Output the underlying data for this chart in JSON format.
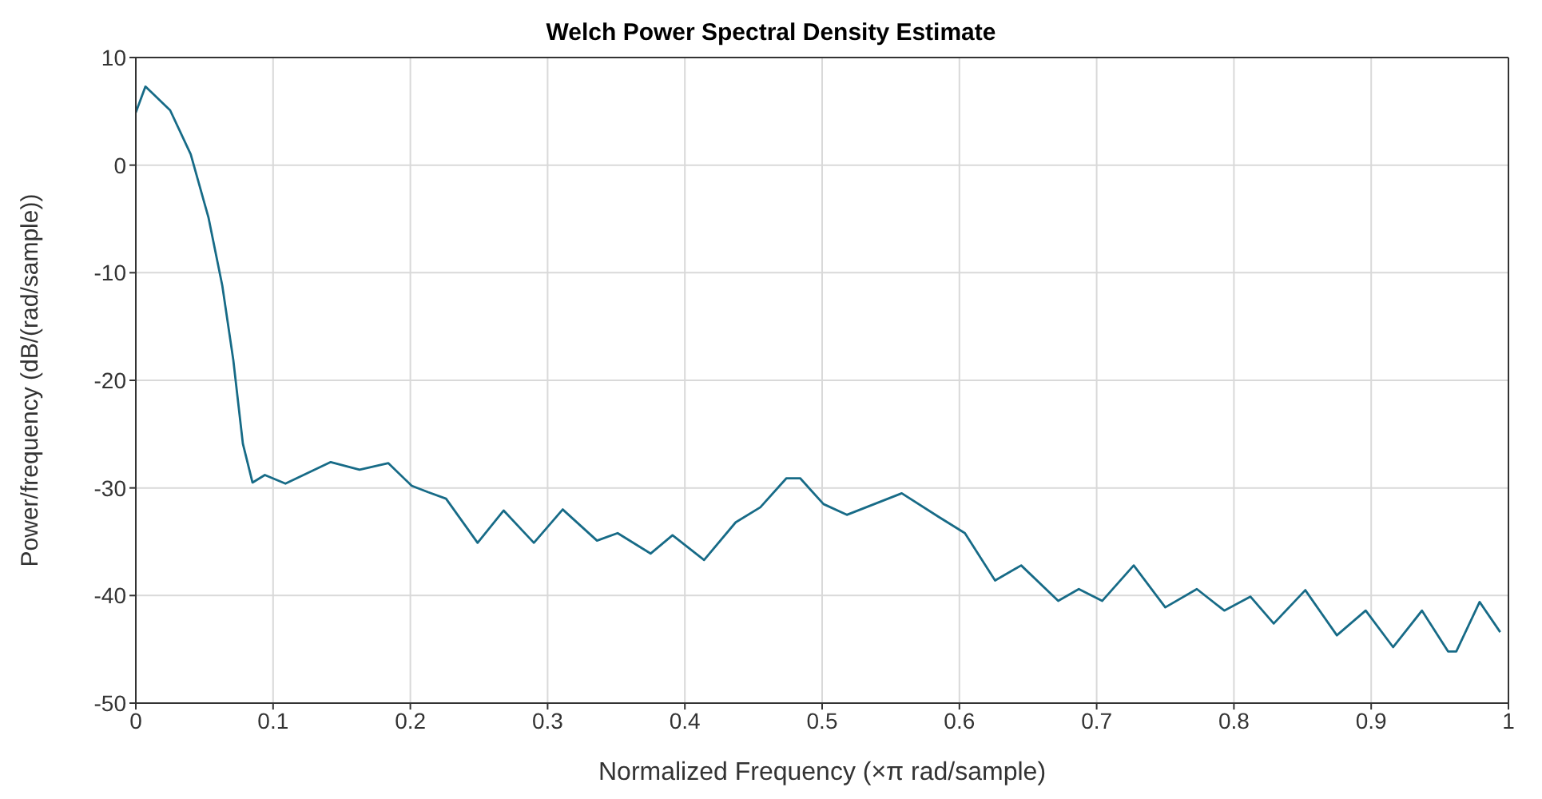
{
  "chart_data": {
    "type": "line",
    "title": "Welch Power Spectral Density Estimate",
    "xlabel": "Normalized Frequency  (×π rad/sample)",
    "ylabel": "Power/frequency (dB/(rad/sample))",
    "xlim": [
      0,
      1
    ],
    "xticks": [
      0,
      0.1,
      0.2,
      0.3,
      0.4,
      0.5,
      0.6,
      0.7,
      0.8,
      0.9,
      1
    ],
    "ylim": [
      -50,
      10
    ],
    "yticks": [
      -50,
      -40,
      -30,
      -20,
      -10,
      0,
      10
    ],
    "grid": true,
    "marker": "none",
    "line_style": "solid",
    "series": [
      {
        "color": "#176b87",
        "x": [
          0,
          0.007,
          0.025,
          0.04,
          0.053,
          0.063,
          0.071,
          0.078,
          0.085,
          0.094,
          0.109,
          0.142,
          0.163,
          0.184,
          0.201,
          0.213,
          0.226,
          0.249,
          0.268,
          0.29,
          0.311,
          0.336,
          0.351,
          0.375,
          0.391,
          0.414,
          0.437,
          0.455,
          0.474,
          0.484,
          0.501,
          0.518,
          0.558,
          0.585,
          0.604,
          0.626,
          0.645,
          0.672,
          0.687,
          0.704,
          0.727,
          0.75,
          0.773,
          0.793,
          0.812,
          0.829,
          0.852,
          0.875,
          0.896,
          0.916,
          0.937,
          0.956,
          0.962,
          0.979,
          0.994
        ],
        "values": [
          4.9,
          7.3,
          5.1,
          1.0,
          -4.9,
          -11.2,
          -18.1,
          -25.9,
          -29.5,
          -28.8,
          -29.6,
          -27.6,
          -28.3,
          -27.7,
          -29.8,
          -30.4,
          -31.0,
          -35.1,
          -32.1,
          -35.1,
          -32.0,
          -34.9,
          -34.2,
          -36.1,
          -34.4,
          -36.7,
          -33.2,
          -31.8,
          -29.1,
          -29.1,
          -31.5,
          -32.5,
          -30.5,
          -32.7,
          -34.2,
          -38.6,
          -37.2,
          -40.5,
          -39.4,
          -40.5,
          -37.2,
          -41.1,
          -39.4,
          -41.4,
          -40.1,
          -42.6,
          -39.5,
          -43.7,
          -41.4,
          -44.8,
          -41.4,
          -45.2,
          -45.2,
          -40.6,
          -43.4
        ]
      }
    ]
  }
}
